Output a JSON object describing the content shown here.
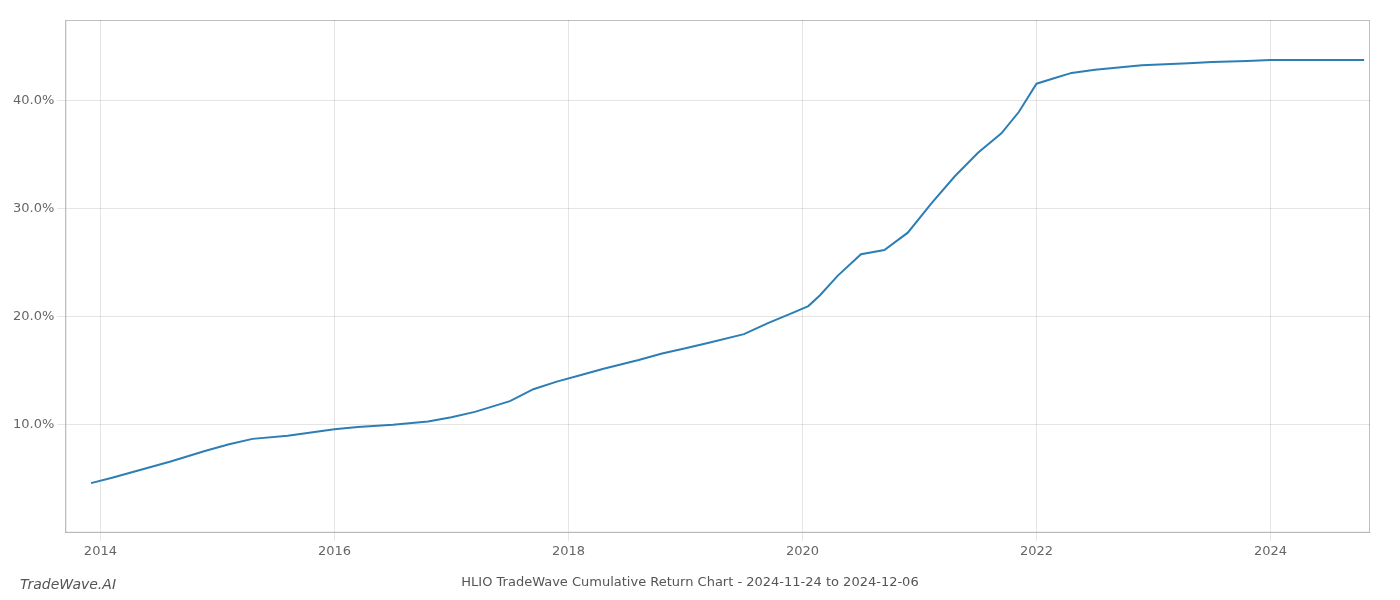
{
  "chart_data": {
    "type": "line",
    "title": "HLIO TradeWave Cumulative Return Chart - 2024-11-24 to 2024-12-06",
    "annotations": [
      "TradeWave.AI"
    ],
    "color": "#2d7eb5",
    "grid": true,
    "xlim": [
      2013.7,
      2024.85
    ],
    "xticks": [
      2014,
      2016,
      2018,
      2020,
      2022,
      2024
    ],
    "ylim": [
      0.0,
      0.475
    ],
    "yticks": [
      {
        "value": 0.1,
        "label": "10.0%"
      },
      {
        "value": 0.2,
        "label": "20.0%"
      },
      {
        "value": 0.3,
        "label": "30.0%"
      },
      {
        "value": 0.4,
        "label": "40.0%"
      }
    ],
    "x": [
      2013.92,
      2014.1,
      2014.3,
      2014.6,
      2014.9,
      2015.1,
      2015.3,
      2015.6,
      2015.8,
      2016.0,
      2016.2,
      2016.5,
      2016.8,
      2017.0,
      2017.2,
      2017.5,
      2017.7,
      2017.9,
      2018.1,
      2018.3,
      2018.6,
      2018.8,
      2019.0,
      2019.2,
      2019.5,
      2019.7,
      2019.9,
      2020.05,
      2020.15,
      2020.3,
      2020.5,
      2020.7,
      2020.9,
      2021.1,
      2021.3,
      2021.5,
      2021.7,
      2021.85,
      2022.0,
      2022.15,
      2022.3,
      2022.5,
      2022.7,
      2022.9,
      2023.1,
      2023.3,
      2023.5,
      2023.8,
      2024.0,
      2024.3,
      2024.6,
      2024.8
    ],
    "values": [
      0.046,
      0.051,
      0.057,
      0.066,
      0.076,
      0.082,
      0.087,
      0.09,
      0.093,
      0.096,
      0.098,
      0.1,
      0.103,
      0.107,
      0.112,
      0.122,
      0.133,
      0.14,
      0.146,
      0.152,
      0.16,
      0.166,
      0.171,
      0.176,
      0.184,
      0.194,
      0.203,
      0.21,
      0.22,
      0.238,
      0.258,
      0.262,
      0.278,
      0.305,
      0.33,
      0.352,
      0.37,
      0.39,
      0.416,
      0.421,
      0.426,
      0.429,
      0.431,
      0.433,
      0.434,
      0.435,
      0.436,
      0.437,
      0.438,
      0.438,
      0.438,
      0.438
    ]
  }
}
